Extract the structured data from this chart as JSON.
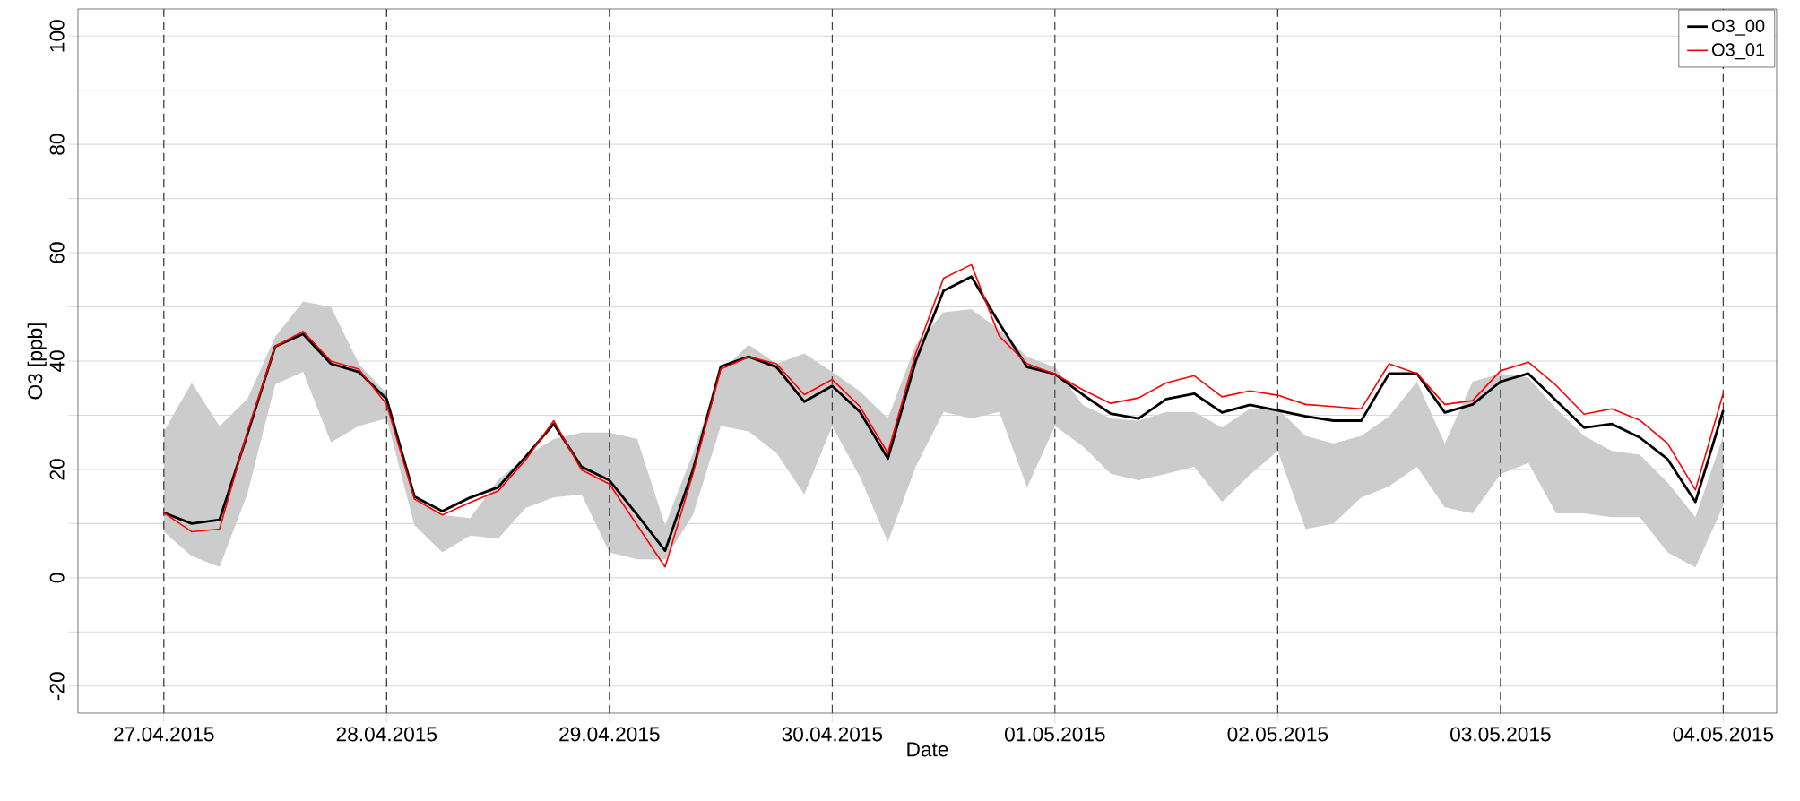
{
  "chart_data": {
    "type": "line",
    "xlabel": "Date",
    "ylabel": "O3 [ppb]",
    "x": [
      "2015-04-27T00:00",
      "2015-04-27T03:00",
      "2015-04-27T06:00",
      "2015-04-27T09:00",
      "2015-04-27T12:00",
      "2015-04-27T15:00",
      "2015-04-27T18:00",
      "2015-04-27T21:00",
      "2015-04-28T00:00",
      "2015-04-28T03:00",
      "2015-04-28T06:00",
      "2015-04-28T09:00",
      "2015-04-28T12:00",
      "2015-04-28T15:00",
      "2015-04-28T18:00",
      "2015-04-28T21:00",
      "2015-04-29T00:00",
      "2015-04-29T03:00",
      "2015-04-29T06:00",
      "2015-04-29T09:00",
      "2015-04-29T12:00",
      "2015-04-29T15:00",
      "2015-04-29T18:00",
      "2015-04-29T21:00",
      "2015-04-30T00:00",
      "2015-04-30T03:00",
      "2015-04-30T06:00",
      "2015-04-30T09:00",
      "2015-04-30T12:00",
      "2015-04-30T15:00",
      "2015-04-30T18:00",
      "2015-04-30T21:00",
      "2015-05-01T00:00",
      "2015-05-01T03:00",
      "2015-05-01T06:00",
      "2015-05-01T09:00",
      "2015-05-01T12:00",
      "2015-05-01T15:00",
      "2015-05-01T18:00",
      "2015-05-01T21:00",
      "2015-05-02T00:00",
      "2015-05-02T03:00",
      "2015-05-02T06:00",
      "2015-05-02T09:00",
      "2015-05-02T12:00",
      "2015-05-02T15:00",
      "2015-05-02T18:00",
      "2015-05-02T21:00",
      "2015-05-03T00:00",
      "2015-05-03T03:00",
      "2015-05-03T06:00",
      "2015-05-03T09:00",
      "2015-05-03T12:00",
      "2015-05-03T15:00",
      "2015-05-03T18:00",
      "2015-05-03T21:00",
      "2015-05-04T00:00"
    ],
    "series": [
      {
        "name": "O3_00",
        "color": "#000000",
        "values": [
          12,
          10,
          10.7,
          26.5,
          42.7,
          45,
          39.5,
          38,
          33,
          15,
          12.3,
          14.8,
          16.7,
          22.4,
          28.4,
          20.5,
          18,
          11.6,
          5,
          19.9,
          39,
          40.8,
          38.9,
          32.5,
          35.4,
          30.6,
          22,
          40,
          53,
          55.6,
          47,
          38.9,
          37.6,
          33.8,
          30.3,
          29.4,
          33,
          34,
          30.5,
          31.9,
          30.9,
          29.8,
          29,
          29,
          37.7,
          37.7,
          30.5,
          32,
          36.2,
          37.7,
          32.7,
          27.7,
          28.4,
          25.9,
          21.9,
          14,
          30.9
        ],
        "lower": [
          8.5,
          4,
          2,
          15.5,
          35.7,
          38,
          25,
          28,
          29.4,
          9.7,
          4.7,
          7.8,
          7.2,
          12.9,
          14.8,
          15.4,
          4.7,
          3.4,
          3.4,
          11.6,
          28,
          27,
          23,
          15.4,
          28,
          18.6,
          6.6,
          20.5,
          30.6,
          29.4,
          30.6,
          16.7,
          28,
          24.3,
          19.2,
          18,
          19.2,
          20.5,
          14,
          19,
          23.4,
          9,
          10,
          14.8,
          16.9,
          20.5,
          13,
          11.9,
          19.1,
          21.2,
          11.9,
          11.9,
          11.2,
          11.2,
          4.7,
          1.9,
          13.3
        ],
        "upper": [
          27,
          36,
          28,
          33,
          44.5,
          51,
          50,
          39.5,
          34,
          15.4,
          11.6,
          11,
          18,
          22.4,
          25.6,
          26.8,
          26.8,
          25.6,
          9.7,
          23,
          38,
          43,
          39.5,
          41.4,
          38,
          34.4,
          29.4,
          43,
          49,
          49.6,
          45.8,
          40.8,
          38.9,
          31.9,
          29.4,
          29,
          30.6,
          30.6,
          27.7,
          31.2,
          31.2,
          26.2,
          24.8,
          26.2,
          29.8,
          36.2,
          24.8,
          36.2,
          37.7,
          37,
          31.2,
          26.2,
          23.4,
          22.7,
          17.6,
          11.2,
          26.2
        ]
      },
      {
        "name": "O3_01",
        "color": "#ff0000",
        "values": [
          12,
          8.5,
          9,
          27,
          42.7,
          45.5,
          40,
          38.5,
          32,
          14.5,
          11.6,
          13.9,
          16,
          21.8,
          29,
          19.9,
          17.3,
          9.7,
          2,
          19.2,
          38.5,
          40.8,
          39.5,
          33.8,
          36.6,
          31.6,
          23,
          41.4,
          55.3,
          57.8,
          44.6,
          39.5,
          37.6,
          34.7,
          32.2,
          33.2,
          36,
          37.3,
          33.4,
          34.5,
          33.7,
          32,
          31.6,
          31.2,
          39.5,
          37.7,
          32,
          32.7,
          38.2,
          39.8,
          35.5,
          30.2,
          31.2,
          29.1,
          24.8,
          16.2,
          34.1
        ]
      }
    ],
    "xlim": [
      "2015-04-26T14:45",
      "2015-05-04T05:45"
    ],
    "ylim": [
      -25,
      105
    ],
    "xticks": [
      {
        "value": "2015-04-27",
        "label": "27.04.2015"
      },
      {
        "value": "2015-04-28",
        "label": "28.04.2015"
      },
      {
        "value": "2015-04-29",
        "label": "29.04.2015"
      },
      {
        "value": "2015-04-30",
        "label": "30.04.2015"
      },
      {
        "value": "2015-05-01",
        "label": "01.05.2015"
      },
      {
        "value": "2015-05-02",
        "label": "02.05.2015"
      },
      {
        "value": "2015-05-03",
        "label": "03.05.2015"
      },
      {
        "value": "2015-05-04",
        "label": "04.05.2015"
      }
    ],
    "yticks": [
      -20,
      {
        "value": -10,
        "label": null
      },
      0,
      {
        "value": 10,
        "label": null
      },
      20,
      {
        "value": 30,
        "label": null
      },
      40,
      {
        "value": 50,
        "label": null
      },
      60,
      {
        "value": 70,
        "label": null
      },
      80,
      {
        "value": 90,
        "label": null
      },
      100
    ],
    "ref_lines": [
      {
        "axis": "x",
        "value": "2015-04-27",
        "line_style": "dashed",
        "color": "#404040"
      },
      {
        "axis": "x",
        "value": "2015-04-28",
        "line_style": "dashed",
        "color": "#404040"
      },
      {
        "axis": "x",
        "value": "2015-04-29",
        "line_style": "dashed",
        "color": "#404040"
      },
      {
        "axis": "x",
        "value": "2015-04-30",
        "line_style": "dashed",
        "color": "#404040"
      },
      {
        "axis": "x",
        "value": "2015-05-01",
        "line_style": "dashed",
        "color": "#404040"
      },
      {
        "axis": "x",
        "value": "2015-05-02",
        "line_style": "dashed",
        "color": "#404040"
      },
      {
        "axis": "x",
        "value": "2015-05-03",
        "line_style": "dashed",
        "color": "#404040"
      },
      {
        "axis": "x",
        "value": "2015-05-04",
        "line_style": "dashed",
        "color": "#404040"
      }
    ],
    "grid": "y",
    "legend": "top right"
  }
}
